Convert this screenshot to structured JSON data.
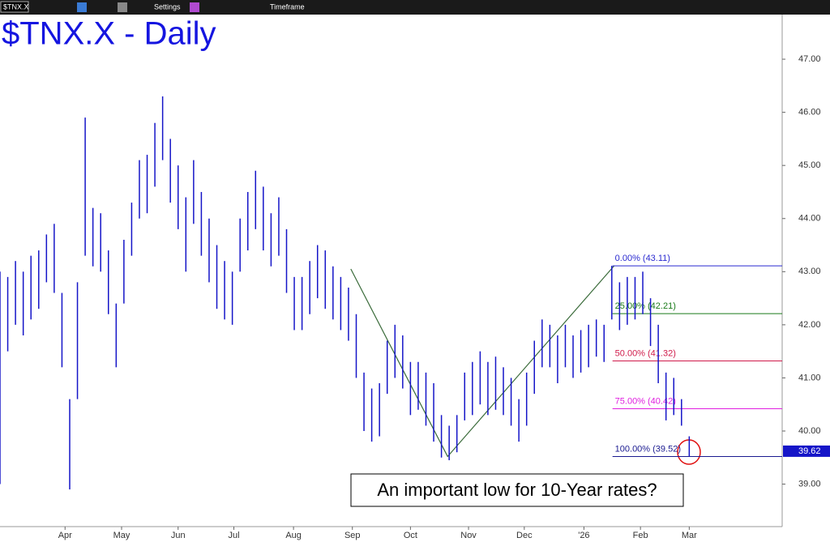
{
  "toolbar": {
    "symbol": "$TNX.X",
    "settings": "Settings",
    "timeframe": "Timeframe"
  },
  "chart_data": {
    "type": "ohlc",
    "title": "$TNX.X - Daily",
    "color": "#1515c8",
    "high": [
      43.0,
      42.9,
      43.2,
      43.0,
      43.3,
      43.4,
      43.7,
      43.9,
      42.6,
      40.6,
      42.8,
      45.9,
      44.2,
      44.1,
      43.4,
      42.4,
      43.6,
      44.3,
      45.1,
      45.2,
      45.8,
      46.3,
      45.5,
      45.0,
      44.4,
      45.1,
      44.5,
      44.0,
      43.5,
      43.2,
      43.0,
      44.0,
      44.5,
      44.9,
      44.6,
      44.1,
      44.4,
      43.8,
      42.9,
      42.9,
      43.2,
      43.5,
      43.4,
      43.1,
      42.9,
      42.7,
      42.2,
      41.1,
      40.8,
      40.9,
      41.7,
      42.0,
      41.8,
      41.3,
      41.3,
      41.1,
      40.9,
      40.3,
      40.1,
      40.3,
      41.1,
      41.3,
      41.5,
      41.3,
      41.4,
      41.2,
      41.0,
      40.6,
      41.1,
      41.7,
      42.1,
      42.0,
      41.8,
      42.0,
      41.8,
      41.9,
      42.0,
      42.1,
      42.0,
      43.11,
      42.8,
      42.9,
      42.9,
      43.0,
      42.5,
      42.0,
      41.1,
      41.0,
      40.6,
      39.9
    ],
    "low": [
      39.0,
      41.5,
      42.0,
      41.8,
      42.1,
      42.3,
      42.8,
      42.6,
      41.2,
      38.9,
      40.6,
      43.3,
      43.1,
      43.0,
      42.2,
      41.2,
      42.4,
      43.3,
      44.0,
      44.1,
      44.6,
      45.1,
      44.3,
      43.8,
      43.0,
      43.9,
      43.3,
      42.8,
      42.3,
      42.1,
      42.0,
      43.0,
      43.4,
      43.8,
      43.4,
      43.1,
      43.3,
      42.6,
      41.9,
      41.9,
      42.2,
      42.5,
      42.3,
      42.1,
      41.9,
      41.7,
      41.0,
      40.0,
      39.8,
      39.9,
      40.7,
      41.0,
      40.8,
      40.3,
      40.4,
      40.1,
      39.8,
      39.5,
      39.45,
      39.6,
      40.2,
      40.3,
      40.5,
      40.3,
      40.4,
      40.3,
      40.1,
      39.8,
      40.1,
      40.7,
      41.2,
      41.2,
      40.9,
      41.2,
      41.0,
      41.1,
      41.2,
      41.4,
      41.3,
      42.1,
      41.9,
      42.0,
      42.1,
      42.2,
      41.6,
      40.9,
      40.2,
      40.3,
      40.1,
      39.52
    ],
    "xlim": [
      0,
      101
    ],
    "xticks": [
      {
        "value": 8.4,
        "label": "Apr"
      },
      {
        "value": 15.7,
        "label": "May"
      },
      {
        "value": 23,
        "label": "Jun"
      },
      {
        "value": 30.2,
        "label": "Jul"
      },
      {
        "value": 37.9,
        "label": "Aug"
      },
      {
        "value": 45.5,
        "label": "Sep"
      },
      {
        "value": 53,
        "label": "Oct"
      },
      {
        "value": 60.5,
        "label": "Nov"
      },
      {
        "value": 67.7,
        "label": "Dec"
      },
      {
        "value": 75.4,
        "label": "'26"
      },
      {
        "value": 82.7,
        "label": "Feb"
      },
      {
        "value": 89,
        "label": "Mar"
      }
    ],
    "ylim": [
      38.2,
      47.84
    ],
    "yticks": [
      {
        "value": 39,
        "label": "39.00"
      },
      {
        "value": 40,
        "label": "40.00"
      },
      {
        "value": 41,
        "label": "41.00"
      },
      {
        "value": 42,
        "label": "42.00"
      },
      {
        "value": 43,
        "label": "43.00"
      },
      {
        "value": 44,
        "label": "44.00"
      },
      {
        "value": 45,
        "label": "45.00"
      },
      {
        "value": 46,
        "label": "46.00"
      },
      {
        "value": 47,
        "label": "47.00"
      }
    ],
    "last_price": 39.62,
    "fib_swing": {
      "x": [
        45.3,
        57.8,
        79.3
      ],
      "y": [
        43.05,
        39.52,
        43.11
      ],
      "color": "#3a6b3a"
    },
    "fib_levels": [
      {
        "value": 43.11,
        "label": "0.00% (43.11)",
        "color": "#2a2ad0"
      },
      {
        "value": 42.21,
        "label": "25.00% (42.21)",
        "color": "#1a7a1a"
      },
      {
        "value": 41.32,
        "label": "50.00% (41.32)",
        "color": "#d01a4a"
      },
      {
        "value": 40.42,
        "label": "75.00% (40.42)",
        "color": "#e020e0"
      },
      {
        "value": 39.52,
        "label": "100.00% (39.52)",
        "color": "#1a1a90"
      }
    ],
    "annotation": "An important low for 10-Year rates?"
  }
}
